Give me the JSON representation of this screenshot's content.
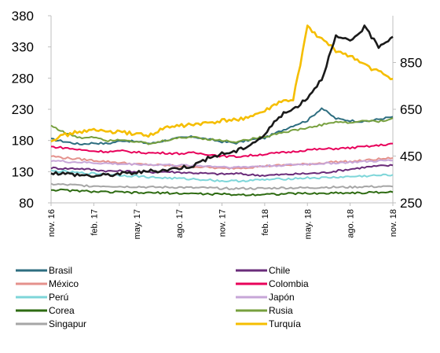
{
  "chart_data": {
    "type": "line",
    "title": "",
    "xlabel": "",
    "ylabel": "",
    "grid": false,
    "legend_placement": "bottom",
    "x_ticks": [
      "nov. 16",
      "feb. 17",
      "may. 17",
      "ago. 17",
      "nov. 17",
      "feb. 18",
      "may. 18",
      "ago. 18",
      "nov. 18"
    ],
    "left_axis": {
      "ylim": [
        80,
        380
      ],
      "ticks": [
        "80",
        "130",
        "180",
        "230",
        "280",
        "330",
        "380"
      ]
    },
    "right_axis": {
      "ylim": [
        250,
        1050
      ],
      "ticks": [
        "250",
        "450",
        "650",
        "850"
      ]
    },
    "series": [
      {
        "name": "Brasil",
        "color": "#2E6E80",
        "axis": "left",
        "values": [
          182,
          178,
          174,
          176,
          175,
          180,
          178,
          175,
          180,
          184,
          186,
          182,
          178,
          176,
          181,
          184,
          194,
          204,
          212,
          232,
          215,
          212,
          210,
          214,
          218
        ]
      },
      {
        "name": "Chile",
        "color": "#6A2C7A",
        "axis": "left",
        "values": [
          136,
          135,
          135,
          133,
          131,
          131,
          130,
          129,
          130,
          129,
          128,
          127,
          126,
          127,
          125,
          124,
          125,
          126,
          127,
          128,
          131,
          134,
          137,
          139,
          140
        ]
      },
      {
        "name": "México",
        "color": "#E4918C",
        "axis": "left",
        "values": [
          155,
          152,
          150,
          148,
          146,
          144,
          142,
          141,
          140,
          139,
          138,
          137,
          135,
          136,
          137,
          139,
          140,
          141,
          142,
          144,
          146,
          146,
          148,
          150,
          152
        ]
      },
      {
        "name": "Colombia",
        "color": "#E8005A",
        "axis": "left",
        "values": [
          170,
          168,
          165,
          163,
          162,
          163,
          161,
          160,
          160,
          159,
          160,
          158,
          155,
          154,
          156,
          158,
          160,
          162,
          165,
          166,
          167,
          168,
          170,
          172,
          175
        ]
      },
      {
        "name": "Perú",
        "color": "#7ED6D9",
        "axis": "left",
        "values": [
          131,
          130,
          128,
          127,
          126,
          124,
          123,
          121,
          120,
          119,
          118,
          117,
          115,
          115,
          116,
          117,
          118,
          119,
          120,
          120,
          121,
          122,
          123,
          124,
          125
        ]
      },
      {
        "name": "Japón",
        "color": "#C7A6D8",
        "axis": "left",
        "values": [
          148,
          146,
          145,
          144,
          143,
          142,
          142,
          141,
          141,
          140,
          140,
          139,
          138,
          137,
          138,
          139,
          140,
          141,
          142,
          143,
          144,
          145,
          146,
          147,
          148
        ]
      },
      {
        "name": "Corea",
        "color": "#2E6B12",
        "axis": "left",
        "values": [
          101,
          100,
          99,
          98,
          97,
          97,
          96,
          96,
          96,
          95,
          95,
          94,
          94,
          93,
          93,
          94,
          94,
          95,
          95,
          95,
          96,
          96,
          96,
          97,
          97
        ]
      },
      {
        "name": "Rusia",
        "color": "#77A03E",
        "axis": "left",
        "values": [
          204,
          192,
          184,
          186,
          180,
          182,
          178,
          174,
          180,
          184,
          186,
          182,
          180,
          178,
          182,
          186,
          192,
          196,
          200,
          205,
          210,
          208,
          212,
          210,
          216
        ]
      },
      {
        "name": "Singapur",
        "color": "#A6A6A6",
        "axis": "left",
        "values": [
          110,
          109,
          108,
          107,
          107,
          106,
          106,
          105,
          105,
          105,
          104,
          104,
          103,
          103,
          103,
          103,
          104,
          104,
          104,
          105,
          105,
          105,
          106,
          106,
          106
        ]
      },
      {
        "name": "Turquía",
        "color": "#F5BE00",
        "axis": "right",
        "values": [
          520,
          540,
          555,
          560,
          555,
          550,
          545,
          540,
          570,
          580,
          585,
          590,
          600,
          605,
          620,
          640,
          680,
          690,
          1000,
          950,
          900,
          880,
          840,
          810,
          780
        ]
      },
      {
        "name": "",
        "color": "#1A1A1A",
        "axis": "right",
        "values": [
          380,
          375,
          370,
          365,
          370,
          375,
          380,
          385,
          390,
          400,
          410,
          440,
          460,
          470,
          500,
          540,
          620,
          650,
          700,
          780,
          960,
          940,
          1000,
          920,
          960
        ]
      }
    ]
  }
}
